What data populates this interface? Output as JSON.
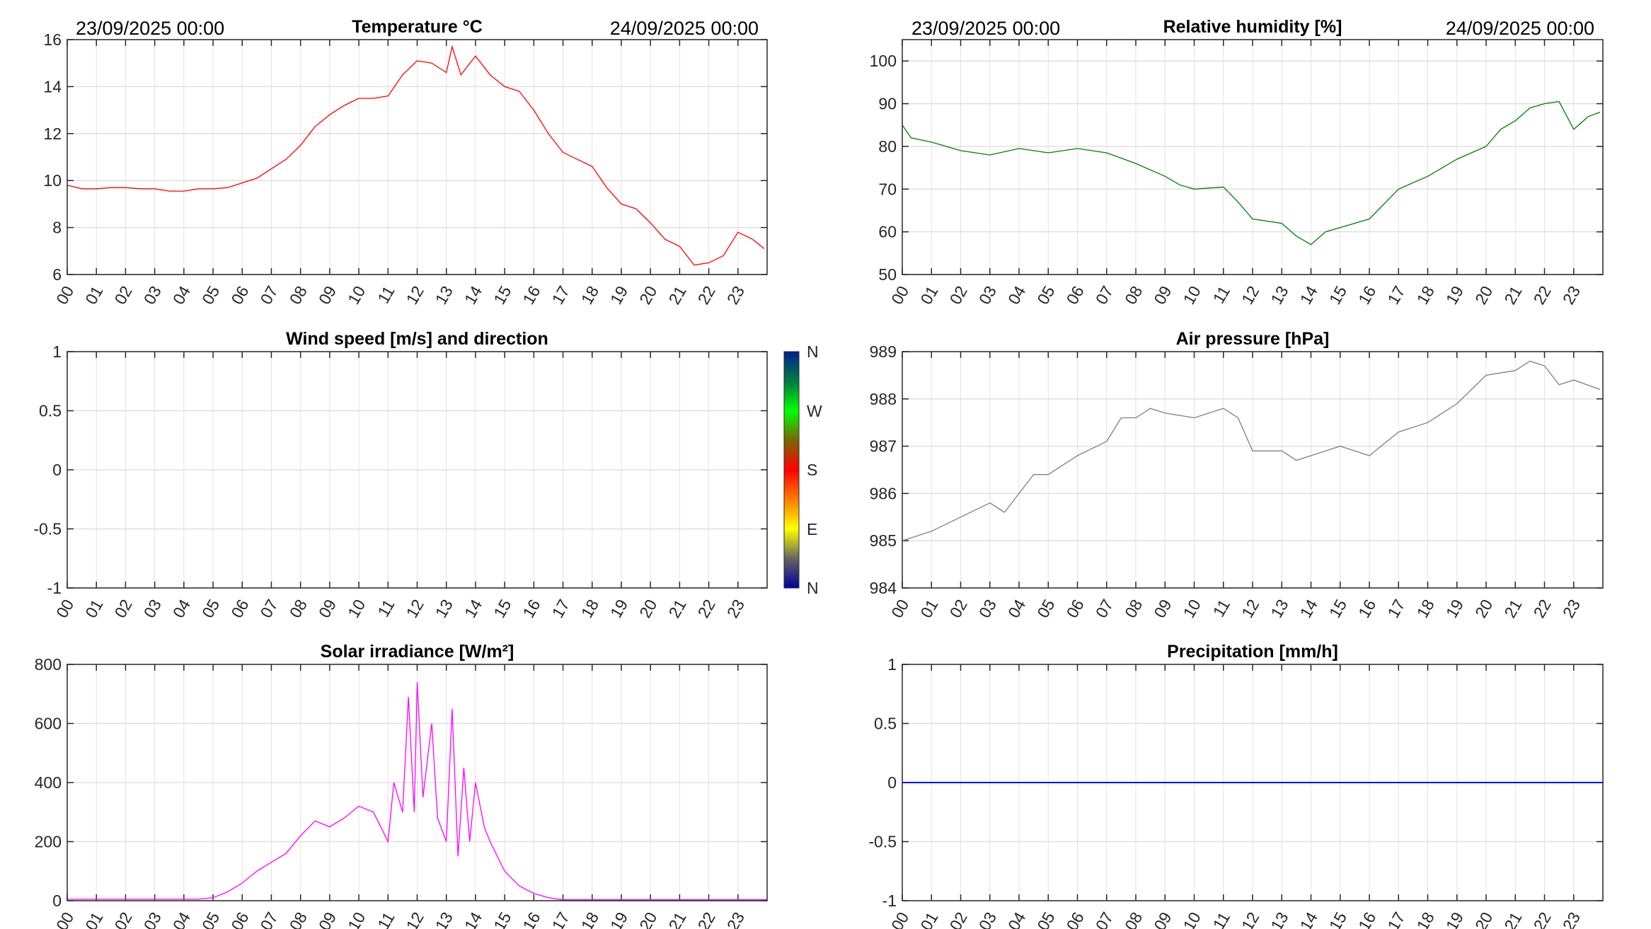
{
  "header": {
    "start_date": "23/09/2025 00:00",
    "end_date": "24/09/2025 00:00"
  },
  "colorbar": {
    "labels": [
      "N",
      "W",
      "S",
      "E",
      "N"
    ]
  },
  "chart_data": [
    {
      "id": "temperature",
      "type": "line",
      "title": "Temperature °C",
      "color": "#ff0000",
      "xlim": [
        0,
        24
      ],
      "ylim": [
        6,
        16
      ],
      "yticks": [
        6,
        8,
        10,
        12,
        14,
        16
      ],
      "ytick_labels": [
        "6",
        "8",
        "10",
        "12",
        "14",
        "16"
      ],
      "x": [
        0,
        0.5,
        1,
        1.5,
        2,
        2.5,
        3,
        3.5,
        4,
        4.5,
        5,
        5.5,
        6,
        6.5,
        7,
        7.5,
        8,
        8.5,
        9,
        9.5,
        10,
        10.5,
        11,
        11.5,
        12,
        12.5,
        13,
        13.2,
        13.5,
        14,
        14.5,
        15,
        15.5,
        16,
        16.5,
        17,
        17.5,
        18,
        18.5,
        19,
        19.5,
        20,
        20.5,
        21,
        21.5,
        22,
        22.5,
        23,
        23.5,
        23.9
      ],
      "y": [
        9.8,
        9.65,
        9.65,
        9.7,
        9.7,
        9.65,
        9.65,
        9.55,
        9.55,
        9.65,
        9.65,
        9.7,
        9.9,
        10.1,
        10.5,
        10.9,
        11.5,
        12.3,
        12.8,
        13.2,
        13.5,
        13.5,
        13.6,
        14.5,
        15.1,
        15.0,
        14.6,
        15.7,
        14.5,
        15.3,
        14.5,
        14.0,
        13.8,
        13.0,
        12.0,
        11.2,
        10.9,
        10.6,
        9.7,
        9.0,
        8.8,
        8.2,
        7.5,
        7.2,
        6.4,
        6.5,
        6.8,
        7.8,
        7.5,
        7.1
      ]
    },
    {
      "id": "humidity",
      "type": "line",
      "title": "Relative humidity [%]",
      "color": "#008000",
      "xlim": [
        0,
        24
      ],
      "ylim": [
        50,
        105
      ],
      "yticks": [
        50,
        60,
        70,
        80,
        90,
        100
      ],
      "ytick_labels": [
        "50",
        "60",
        "70",
        "80",
        "90",
        "100"
      ],
      "x": [
        0,
        0.3,
        1,
        2,
        3,
        4,
        5,
        6,
        7,
        8,
        9,
        9.5,
        10,
        11,
        11.5,
        12,
        13,
        13.5,
        14,
        14.5,
        15,
        16,
        17,
        18,
        19,
        20,
        20.5,
        21,
        21.5,
        22,
        22.5,
        23,
        23.5,
        23.9
      ],
      "y": [
        85,
        82,
        81,
        79,
        78,
        79.5,
        78.5,
        79.5,
        78.5,
        76,
        73,
        71,
        70,
        70.5,
        67,
        63,
        62,
        59,
        57,
        60,
        61,
        63,
        70,
        73,
        77,
        80,
        84,
        86,
        89,
        90,
        90.5,
        84,
        87,
        88
      ]
    },
    {
      "id": "wind",
      "type": "line",
      "title": "Wind speed [m/s] and direction",
      "color": "#000000",
      "xlim": [
        0,
        24
      ],
      "ylim": [
        -1,
        1
      ],
      "yticks": [
        -1,
        -0.5,
        0,
        0.5,
        1
      ],
      "ytick_labels": [
        "-1",
        "-0.5",
        "0",
        "0.5",
        "1"
      ],
      "x": [],
      "y": []
    },
    {
      "id": "pressure",
      "type": "line",
      "title": "Air pressure [hPa]",
      "color": "#808080",
      "xlim": [
        0,
        24
      ],
      "ylim": [
        984,
        989
      ],
      "yticks": [
        984,
        985,
        986,
        987,
        988,
        989
      ],
      "ytick_labels": [
        "984",
        "985",
        "986",
        "987",
        "988",
        "989"
      ],
      "x": [
        0,
        1,
        2,
        3,
        3.5,
        4,
        4.5,
        5,
        5.5,
        6,
        7,
        7.5,
        8,
        8.5,
        9,
        10,
        11,
        11.5,
        12,
        13,
        13.5,
        14,
        15,
        16,
        17,
        18,
        19,
        20,
        21,
        21.5,
        22,
        22.5,
        23,
        23.9
      ],
      "y": [
        985,
        985.2,
        985.5,
        985.8,
        985.6,
        986,
        986.4,
        986.4,
        986.6,
        986.8,
        987.1,
        987.6,
        987.6,
        987.8,
        987.7,
        987.6,
        987.8,
        987.6,
        986.9,
        986.9,
        986.7,
        986.8,
        987,
        986.8,
        987.3,
        987.5,
        987.9,
        988.5,
        988.6,
        988.8,
        988.7,
        988.3,
        988.4,
        988.2
      ]
    },
    {
      "id": "solar",
      "type": "line",
      "title": "Solar irradiance [W/m²]",
      "color": "#ff00ff",
      "xlim": [
        0,
        24
      ],
      "ylim": [
        0,
        800
      ],
      "yticks": [
        0,
        200,
        400,
        600,
        800
      ],
      "ytick_labels": [
        "0",
        "200",
        "400",
        "600",
        "800"
      ],
      "x": [
        0,
        4.5,
        5,
        5.5,
        6,
        6.5,
        7,
        7.5,
        8,
        8.5,
        9,
        9.5,
        10,
        10.5,
        11,
        11.2,
        11.5,
        11.7,
        11.9,
        12,
        12.2,
        12.5,
        12.7,
        13,
        13.2,
        13.4,
        13.6,
        13.8,
        14,
        14.3,
        14.5,
        15,
        15.5,
        16,
        16.5,
        17,
        24
      ],
      "y": [
        5,
        5,
        10,
        30,
        60,
        100,
        130,
        160,
        220,
        270,
        250,
        280,
        320,
        300,
        200,
        400,
        300,
        690,
        300,
        740,
        350,
        600,
        280,
        200,
        650,
        150,
        450,
        200,
        400,
        250,
        200,
        100,
        50,
        25,
        10,
        3,
        3
      ]
    },
    {
      "id": "precipitation",
      "type": "line",
      "title": "Precipitation [mm/h]",
      "color": "#0000ff",
      "xlim": [
        0,
        24
      ],
      "ylim": [
        -1,
        1
      ],
      "yticks": [
        -1,
        -0.5,
        0,
        0.5,
        1
      ],
      "ytick_labels": [
        "-1",
        "-0.5",
        "0",
        "0.5",
        "1"
      ],
      "x": [
        0,
        24
      ],
      "y": [
        0,
        0
      ]
    }
  ],
  "xtick_labels": [
    "00",
    "01",
    "02",
    "03",
    "04",
    "05",
    "06",
    "07",
    "08",
    "09",
    "10",
    "11",
    "12",
    "13",
    "14",
    "15",
    "16",
    "17",
    "18",
    "19",
    "20",
    "21",
    "22",
    "23"
  ]
}
